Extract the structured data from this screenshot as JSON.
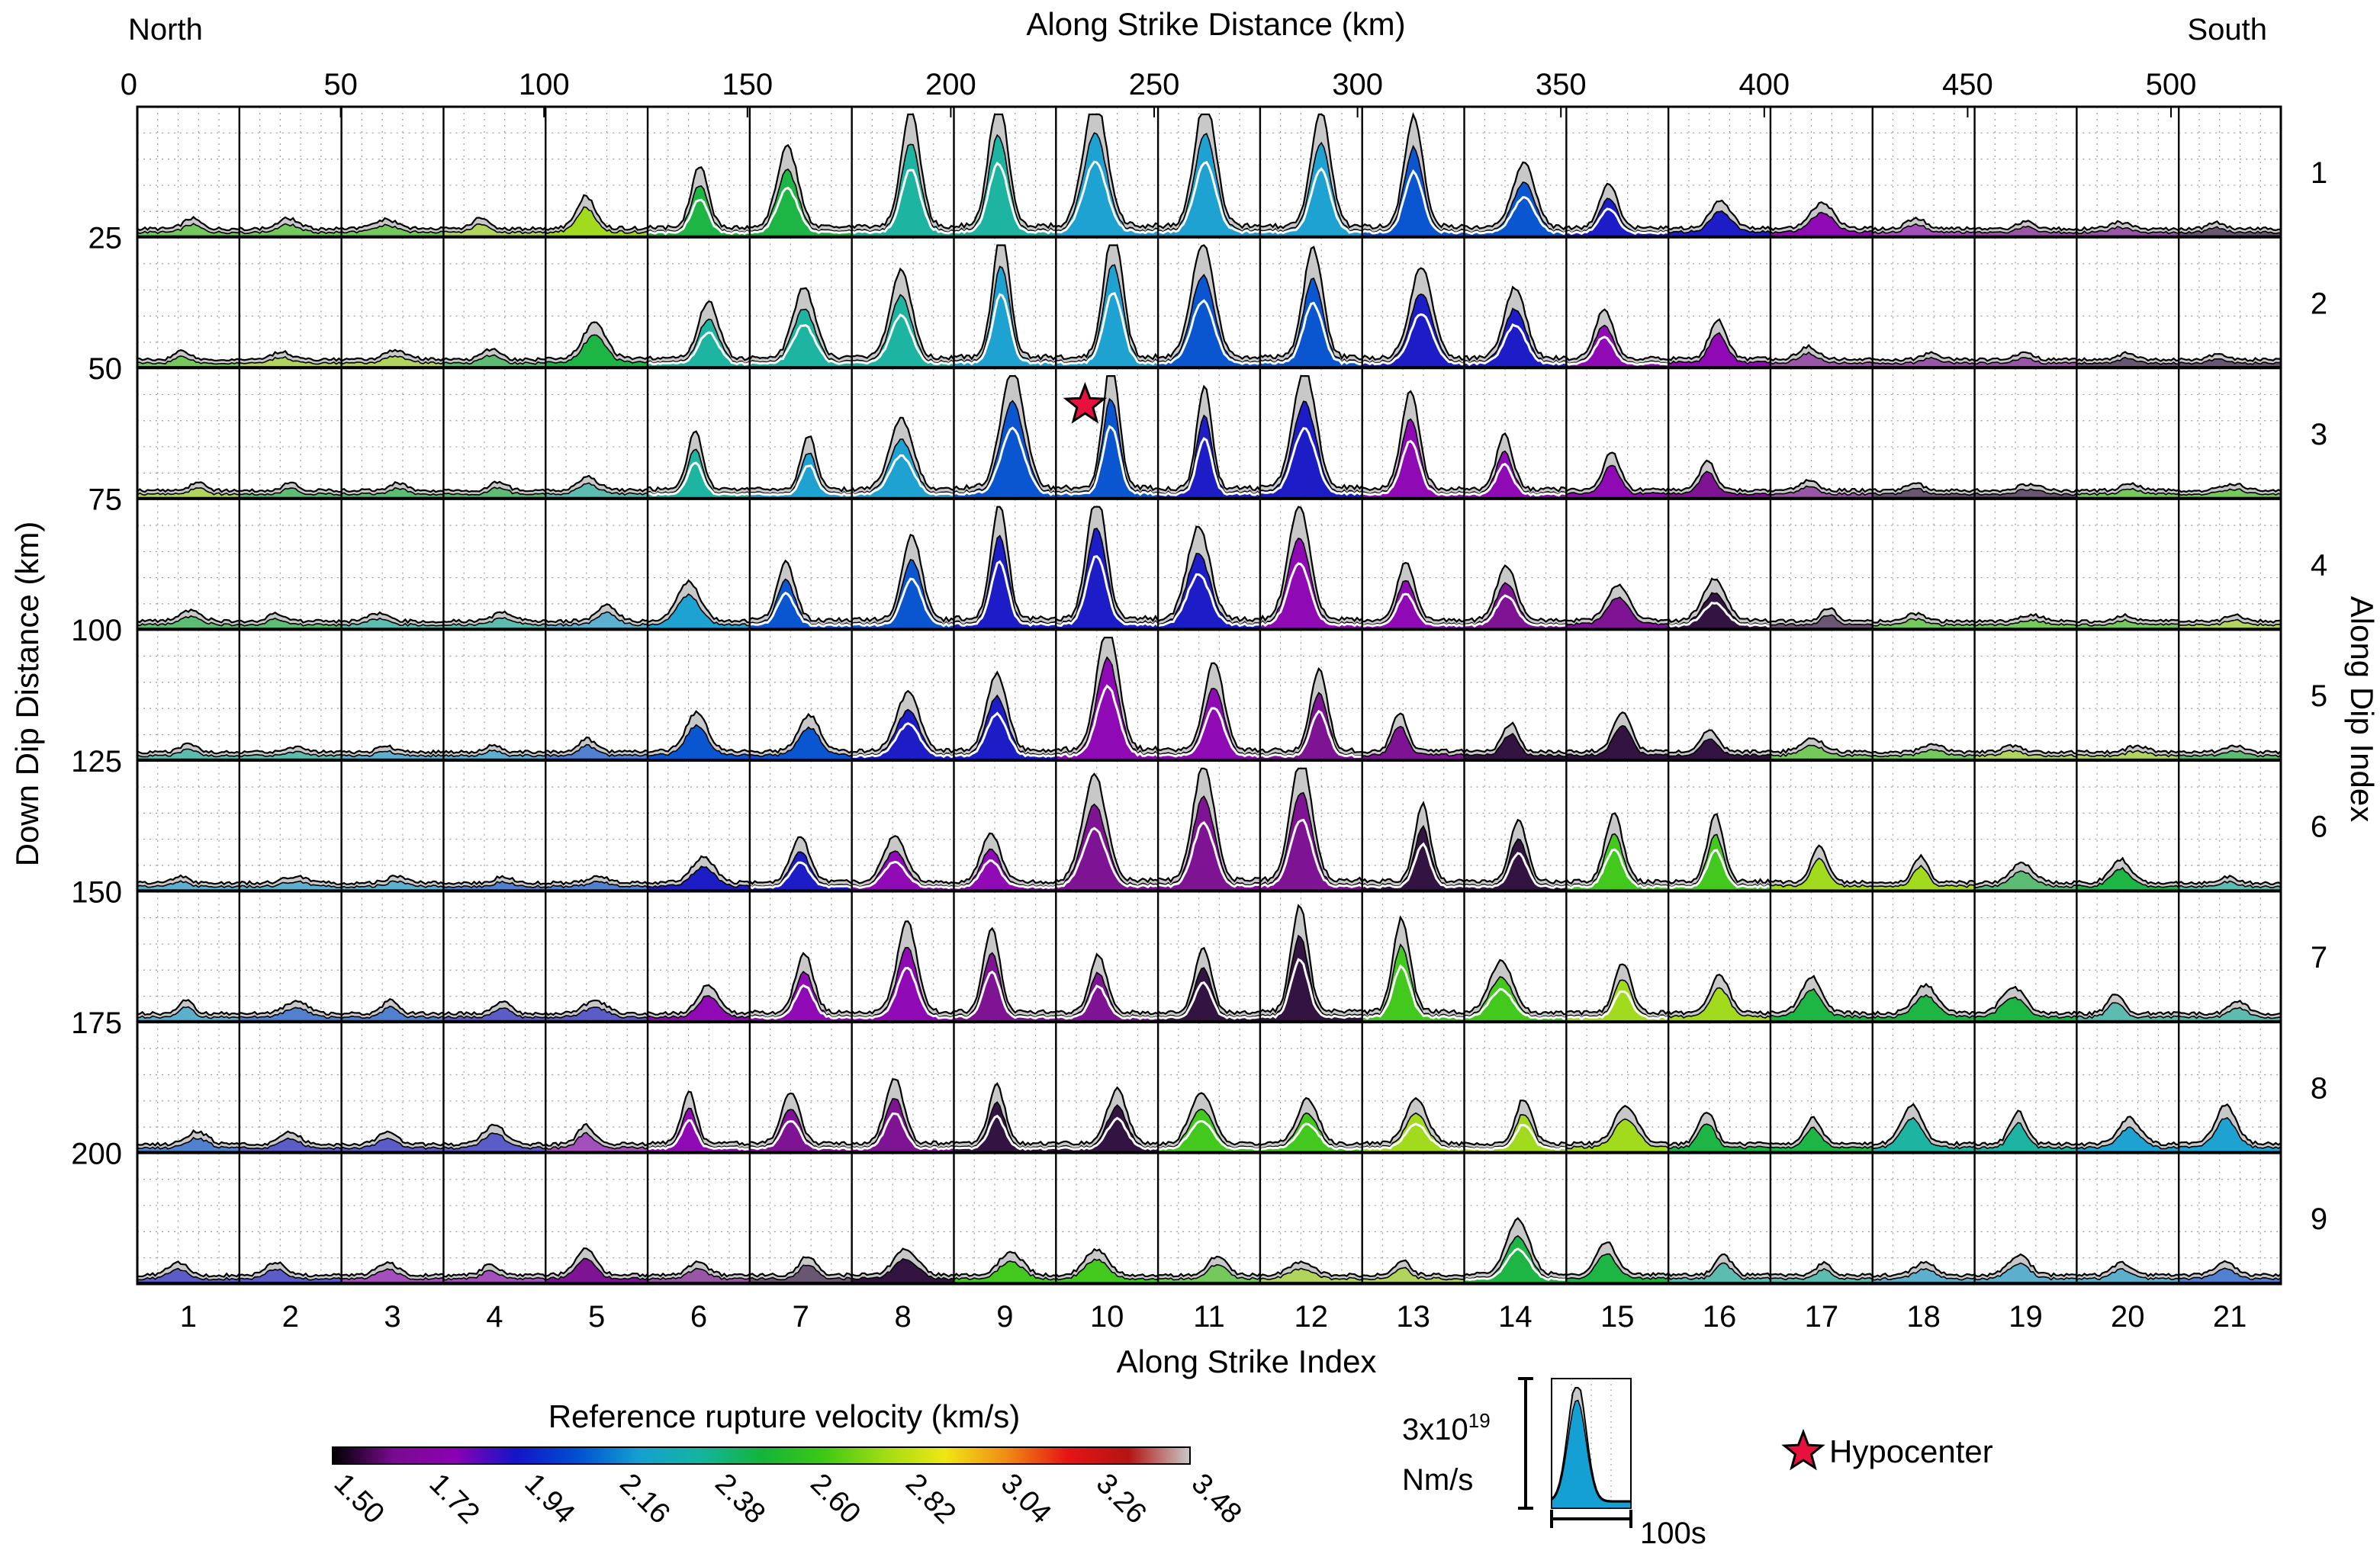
{
  "chart_data": {
    "type": "area",
    "labels": {
      "north": "North",
      "south": "South",
      "top_axis_label": "Along Strike Distance (km)",
      "left_axis_label": "Down Dip Distance (km)",
      "right_axis_label": "Along Dip Index",
      "bottom_axis_label": "Along Strike Index"
    },
    "top_ticks": [
      0,
      50,
      100,
      150,
      200,
      250,
      300,
      350,
      400,
      450,
      500
    ],
    "top_axis_range_km": [
      0,
      527
    ],
    "left_ticks": [
      25,
      50,
      75,
      100,
      125,
      150,
      175,
      200
    ],
    "strike_index": [
      1,
      2,
      3,
      4,
      5,
      6,
      7,
      8,
      9,
      10,
      11,
      12,
      13,
      14,
      15,
      16,
      17,
      18,
      19,
      20,
      21
    ],
    "dip_index": [
      1,
      2,
      3,
      4,
      5,
      6,
      7,
      8,
      9
    ],
    "peak_rates": [
      [
        0.08,
        0.08,
        0.07,
        0.08,
        0.25,
        0.48,
        0.62,
        0.9,
        0.98,
        1.0,
        1.0,
        0.9,
        0.85,
        0.5,
        0.35,
        0.22,
        0.2,
        0.08,
        0.06,
        0.05,
        0.05
      ],
      [
        0.07,
        0.06,
        0.07,
        0.08,
        0.28,
        0.45,
        0.55,
        0.68,
        0.98,
        1.0,
        0.88,
        0.85,
        0.7,
        0.55,
        0.38,
        0.3,
        0.1,
        0.06,
        0.05,
        0.05,
        0.05
      ],
      [
        0.06,
        0.06,
        0.06,
        0.07,
        0.1,
        0.45,
        0.42,
        0.55,
        0.92,
        0.96,
        0.8,
        0.92,
        0.75,
        0.42,
        0.3,
        0.22,
        0.08,
        0.06,
        0.05,
        0.05,
        0.05
      ],
      [
        0.08,
        0.06,
        0.06,
        0.07,
        0.12,
        0.3,
        0.45,
        0.65,
        0.9,
        0.98,
        0.72,
        0.88,
        0.45,
        0.42,
        0.28,
        0.32,
        0.1,
        0.06,
        0.05,
        0.05,
        0.05
      ],
      [
        0.06,
        0.05,
        0.05,
        0.05,
        0.1,
        0.3,
        0.28,
        0.45,
        0.6,
        0.98,
        0.68,
        0.62,
        0.3,
        0.22,
        0.3,
        0.18,
        0.1,
        0.06,
        0.05,
        0.05,
        0.05
      ],
      [
        0.05,
        0.05,
        0.05,
        0.05,
        0.05,
        0.2,
        0.35,
        0.35,
        0.38,
        0.82,
        0.9,
        0.95,
        0.6,
        0.48,
        0.52,
        0.52,
        0.28,
        0.2,
        0.15,
        0.18,
        0.05
      ],
      [
        0.1,
        0.1,
        0.1,
        0.1,
        0.1,
        0.22,
        0.45,
        0.7,
        0.65,
        0.45,
        0.5,
        0.82,
        0.72,
        0.4,
        0.38,
        0.3,
        0.28,
        0.22,
        0.2,
        0.15,
        0.1
      ],
      [
        0.1,
        0.1,
        0.1,
        0.15,
        0.15,
        0.4,
        0.4,
        0.5,
        0.45,
        0.42,
        0.4,
        0.35,
        0.35,
        0.35,
        0.3,
        0.25,
        0.2,
        0.3,
        0.25,
        0.2,
        0.3
      ],
      [
        0.1,
        0.1,
        0.1,
        0.08,
        0.2,
        0.1,
        0.15,
        0.2,
        0.18,
        0.2,
        0.15,
        0.1,
        0.12,
        0.42,
        0.25,
        0.15,
        0.1,
        0.1,
        0.15,
        0.1,
        0.1
      ]
    ],
    "colorbar": {
      "title": "Reference rupture velocity (km/s)",
      "ticks": [
        "1.50",
        "1.72",
        "1.94",
        "2.16",
        "2.38",
        "2.60",
        "2.82",
        "3.04",
        "3.26",
        "3.48"
      ],
      "range": [
        1.5,
        3.48
      ],
      "colors": [
        "#000000",
        "#7a0a90",
        "#8c00b4",
        "#1414c8",
        "#0050d2",
        "#14a0d2",
        "#14b4a0",
        "#14b43c",
        "#3cc814",
        "#a0dc14",
        "#f0e614",
        "#f08c14",
        "#e61414",
        "#b41414",
        "#c8c8c8"
      ]
    },
    "scale_legend": {
      "moment_rate_mantissa": "3x10",
      "moment_rate_exponent": "19",
      "unit": "Nm/s",
      "time": "100s"
    },
    "hypocenter": {
      "label": "Hypocenter",
      "color": "#e8103c",
      "along_strike_km": 233,
      "down_dip_km": 82
    }
  }
}
